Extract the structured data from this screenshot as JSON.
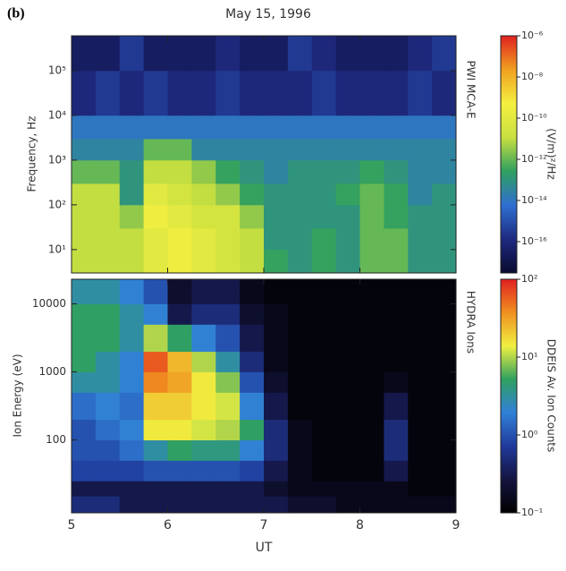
{
  "chart_data": [
    {
      "type": "heatmap",
      "panel_label": "(b)",
      "title": "May 15, 1996",
      "ylabel": "Frequency, Hz",
      "side_label": "PWI MCA-E",
      "colorbar_label": "(V/m)²/Hz",
      "yscale": "log",
      "xlim": [
        5,
        9
      ],
      "xticks": [
        5,
        6,
        7,
        8,
        9
      ],
      "ylim": [
        3,
        600000
      ],
      "yticks": [
        {
          "value": 10,
          "label": "10¹"
        },
        {
          "value": 100,
          "label": "10²"
        },
        {
          "value": 1000,
          "label": "10³"
        },
        {
          "value": 10000,
          "label": "10⁴"
        },
        {
          "value": 100000,
          "label": "10⁵"
        }
      ],
      "clim": [
        3e-18,
        1e-06
      ],
      "cticks": [
        {
          "value": 1e-06,
          "label": "10⁻⁶"
        },
        {
          "value": 1e-08,
          "label": "10⁻⁸"
        },
        {
          "value": 1e-10,
          "label": "10⁻¹⁰"
        },
        {
          "value": 1e-12,
          "label": "10⁻¹²"
        },
        {
          "value": 1e-14,
          "label": "10⁻¹⁴"
        },
        {
          "value": 1e-16,
          "label": "10⁻¹⁶"
        }
      ],
      "colormap": [
        "#0a0a30",
        "#1e2a80",
        "#2f6fd0",
        "#30a060",
        "#c8e040",
        "#f5f040",
        "#f0a020",
        "#e02020"
      ],
      "xbins": [
        5,
        5.25,
        5.5,
        5.75,
        6,
        6.25,
        6.5,
        6.75,
        7,
        7.25,
        7.5,
        7.75,
        8,
        8.25,
        8.5,
        8.75,
        9
      ],
      "ybins": [
        3,
        10,
        30,
        100,
        300,
        1000,
        3000,
        10000,
        100000,
        600000
      ],
      "z": [
        [
          1e-11,
          1e-11,
          1e-11,
          1e-10,
          3e-10,
          1e-10,
          3e-11,
          1e-11,
          3e-13,
          1e-13,
          3e-13,
          1e-13,
          1e-12,
          1e-12,
          1e-13,
          1e-13
        ],
        [
          1e-11,
          1e-11,
          1e-11,
          1e-10,
          3e-10,
          1e-10,
          3e-11,
          1e-11,
          1e-13,
          1e-13,
          3e-13,
          1e-13,
          1e-12,
          1e-12,
          1e-13,
          1e-13
        ],
        [
          1e-11,
          1e-11,
          3e-12,
          3e-10,
          1e-10,
          3e-11,
          3e-11,
          3e-12,
          1e-13,
          1e-13,
          1e-13,
          1e-13,
          1e-12,
          3e-13,
          1e-13,
          1e-13
        ],
        [
          1e-11,
          1e-11,
          1e-13,
          1e-10,
          3e-11,
          1e-11,
          3e-12,
          3e-13,
          1e-13,
          1e-13,
          1e-13,
          3e-13,
          1e-12,
          3e-13,
          3e-14,
          1e-13
        ],
        [
          1e-12,
          1e-12,
          1e-13,
          1e-11,
          1e-11,
          3e-12,
          3e-13,
          1e-13,
          3e-14,
          1e-13,
          1e-13,
          1e-13,
          3e-13,
          1e-13,
          3e-14,
          3e-14
        ],
        [
          3e-14,
          3e-14,
          3e-14,
          1e-12,
          1e-12,
          3e-14,
          3e-14,
          3e-14,
          3e-14,
          3e-14,
          3e-14,
          3e-14,
          3e-14,
          3e-14,
          3e-14,
          3e-14
        ],
        [
          1e-14,
          1e-14,
          1e-14,
          1e-14,
          1e-14,
          1e-14,
          1e-14,
          1e-14,
          1e-14,
          1e-14,
          1e-14,
          1e-14,
          1e-14,
          1e-14,
          1e-14,
          1e-14
        ],
        [
          1e-16,
          3e-16,
          1e-16,
          3e-16,
          1e-16,
          1e-16,
          3e-16,
          1e-16,
          1e-16,
          1e-16,
          3e-16,
          1e-16,
          1e-16,
          1e-16,
          3e-16,
          1e-16
        ],
        [
          3e-17,
          3e-17,
          3e-16,
          3e-17,
          3e-17,
          3e-17,
          1e-16,
          3e-17,
          3e-17,
          3e-16,
          1e-16,
          3e-17,
          3e-17,
          3e-17,
          1e-16,
          3e-16
        ]
      ]
    },
    {
      "type": "heatmap",
      "ylabel": "Ion Energy (eV)",
      "xlabel": "UT",
      "side_label": "HYDRA Ions",
      "colorbar_label": "DDEIS Av. Ion Counts",
      "yscale": "log",
      "xlim": [
        5,
        9
      ],
      "xticks": [
        5,
        6,
        7,
        8,
        9
      ],
      "ylim": [
        8.5,
        23000
      ],
      "yticks": [
        100,
        1000,
        10000
      ],
      "clim": [
        0.1,
        100
      ],
      "cticks": [
        {
          "value": 100,
          "label": "10²"
        },
        {
          "value": 10,
          "label": "10¹"
        },
        {
          "value": 1,
          "label": "10⁰"
        },
        {
          "value": 0.1,
          "label": "10⁻¹"
        }
      ],
      "colormap": [
        "#000000",
        "#141440",
        "#203a9a",
        "#3080d8",
        "#30a060",
        "#f0f040",
        "#f09020",
        "#e02020"
      ],
      "xbins": [
        5,
        5.25,
        5.5,
        5.75,
        6,
        6.25,
        6.5,
        6.75,
        7,
        7.25,
        7.5,
        7.75,
        8,
        8.25,
        8.5,
        8.75,
        9
      ],
      "ybins": [
        8.5,
        15,
        25,
        50,
        100,
        200,
        500,
        1000,
        2000,
        5000,
        10000,
        23000
      ],
      "z": [
        [
          0.5,
          0.5,
          0.3,
          0.3,
          0.3,
          0.3,
          0.3,
          0.3,
          0.3,
          0.2,
          0.2,
          0.15,
          0.15,
          0.15,
          0.15,
          0.15
        ],
        [
          0.3,
          0.3,
          0.3,
          0.3,
          0.3,
          0.3,
          0.3,
          0.3,
          0.2,
          0.15,
          0.15,
          0.15,
          0.15,
          0.15,
          0.12,
          0.12
        ],
        [
          0.8,
          0.8,
          0.8,
          1,
          1,
          1,
          1,
          0.8,
          0.3,
          0.15,
          0.12,
          0.12,
          0.12,
          0.3,
          0.12,
          0.12
        ],
        [
          1,
          1,
          1.5,
          3,
          5,
          4,
          4,
          2,
          0.5,
          0.15,
          0.12,
          0.12,
          0.12,
          0.5,
          0.12,
          0.12
        ],
        [
          1,
          1.5,
          2,
          15,
          15,
          12,
          10,
          5,
          0.5,
          0.15,
          0.12,
          0.12,
          0.12,
          0.5,
          0.12,
          0.12
        ],
        [
          1.5,
          2,
          1.5,
          20,
          20,
          15,
          12,
          2,
          0.3,
          0.12,
          0.12,
          0.12,
          0.12,
          0.3,
          0.12,
          0.12
        ],
        [
          3,
          3,
          2,
          40,
          30,
          15,
          8,
          1,
          0.2,
          0.12,
          0.12,
          0.12,
          0.12,
          0.15,
          0.12,
          0.12
        ],
        [
          5,
          3,
          2,
          60,
          25,
          10,
          3,
          0.5,
          0.15,
          0.12,
          0.12,
          0.12,
          0.12,
          0.12,
          0.12,
          0.12
        ],
        [
          5,
          5,
          3,
          10,
          5,
          2,
          1,
          0.3,
          0.15,
          0.12,
          0.12,
          0.12,
          0.12,
          0.12,
          0.12,
          0.12
        ],
        [
          5,
          5,
          3,
          2,
          0.3,
          0.5,
          0.5,
          0.2,
          0.15,
          0.12,
          0.12,
          0.12,
          0.12,
          0.12,
          0.12,
          0.12
        ],
        [
          3,
          3,
          2,
          1,
          0.2,
          0.3,
          0.3,
          0.15,
          0.12,
          0.12,
          0.12,
          0.12,
          0.12,
          0.12,
          0.12,
          0.12
        ]
      ]
    }
  ]
}
